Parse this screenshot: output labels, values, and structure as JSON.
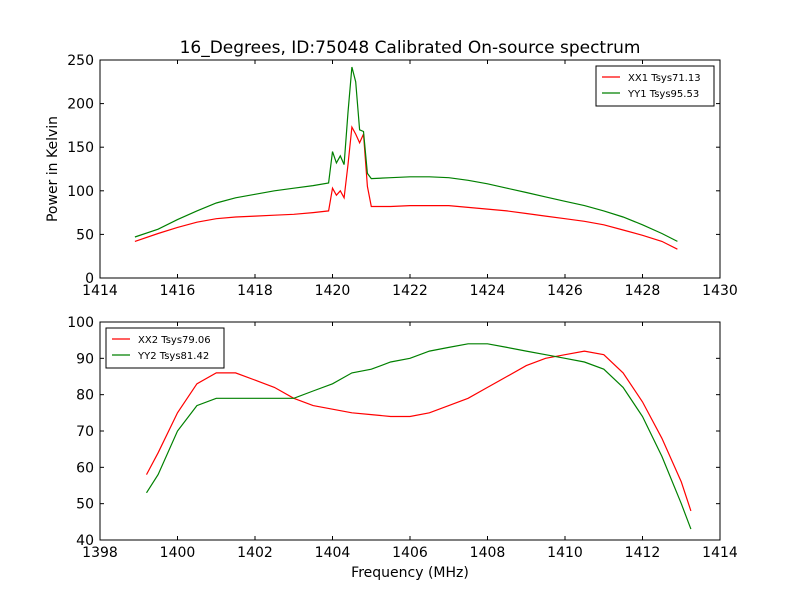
{
  "chart_data": [
    {
      "type": "line",
      "title": "16_Degrees, ID:75048 Calibrated On-source spectrum",
      "xlabel": "",
      "ylabel": "Power in Kelvin",
      "xlim": [
        1414,
        1430
      ],
      "ylim": [
        0,
        250
      ],
      "xticks": [
        "1414",
        "1416",
        "1418",
        "1420",
        "1422",
        "1424",
        "1426",
        "1428",
        "1430"
      ],
      "yticks": [
        "0",
        "50",
        "100",
        "150",
        "200",
        "250"
      ],
      "grid": false,
      "legend_position": "top-right",
      "series": [
        {
          "name": "XX1 Tsys71.13",
          "color": "#ff0000",
          "points": [
            [
              1414.9,
              42
            ],
            [
              1415.5,
              51
            ],
            [
              1416.0,
              58
            ],
            [
              1416.5,
              64
            ],
            [
              1417.0,
              68
            ],
            [
              1417.5,
              70
            ],
            [
              1418.0,
              71
            ],
            [
              1418.5,
              72
            ],
            [
              1419.0,
              73
            ],
            [
              1419.5,
              75
            ],
            [
              1419.9,
              77
            ],
            [
              1420.0,
              103
            ],
            [
              1420.1,
              95
            ],
            [
              1420.2,
              100
            ],
            [
              1420.3,
              92
            ],
            [
              1420.4,
              130
            ],
            [
              1420.5,
              173
            ],
            [
              1420.6,
              165
            ],
            [
              1420.7,
              155
            ],
            [
              1420.8,
              165
            ],
            [
              1420.9,
              105
            ],
            [
              1421.0,
              82
            ],
            [
              1421.5,
              82
            ],
            [
              1422.0,
              83
            ],
            [
              1422.5,
              83
            ],
            [
              1423.0,
              83
            ],
            [
              1423.5,
              81
            ],
            [
              1424.0,
              79
            ],
            [
              1424.5,
              77
            ],
            [
              1425.0,
              74
            ],
            [
              1425.5,
              71
            ],
            [
              1426.0,
              68
            ],
            [
              1426.5,
              65
            ],
            [
              1427.0,
              61
            ],
            [
              1427.5,
              55
            ],
            [
              1428.0,
              49
            ],
            [
              1428.5,
              42
            ],
            [
              1428.9,
              33
            ]
          ]
        },
        {
          "name": "YY1 Tsys95.53",
          "color": "#008000",
          "points": [
            [
              1414.9,
              47
            ],
            [
              1415.5,
              56
            ],
            [
              1416.0,
              67
            ],
            [
              1416.5,
              77
            ],
            [
              1417.0,
              86
            ],
            [
              1417.5,
              92
            ],
            [
              1418.0,
              96
            ],
            [
              1418.5,
              100
            ],
            [
              1419.0,
              103
            ],
            [
              1419.5,
              106
            ],
            [
              1419.9,
              109
            ],
            [
              1420.0,
              145
            ],
            [
              1420.1,
              132
            ],
            [
              1420.2,
              140
            ],
            [
              1420.3,
              130
            ],
            [
              1420.4,
              190
            ],
            [
              1420.5,
              242
            ],
            [
              1420.6,
              225
            ],
            [
              1420.7,
              170
            ],
            [
              1420.8,
              168
            ],
            [
              1420.9,
              120
            ],
            [
              1421.0,
              114
            ],
            [
              1421.5,
              115
            ],
            [
              1422.0,
              116
            ],
            [
              1422.5,
              116
            ],
            [
              1423.0,
              115
            ],
            [
              1423.5,
              112
            ],
            [
              1424.0,
              108
            ],
            [
              1424.5,
              103
            ],
            [
              1425.0,
              98
            ],
            [
              1425.5,
              93
            ],
            [
              1426.0,
              88
            ],
            [
              1426.5,
              83
            ],
            [
              1427.0,
              77
            ],
            [
              1427.5,
              70
            ],
            [
              1428.0,
              61
            ],
            [
              1428.5,
              51
            ],
            [
              1428.9,
              42
            ]
          ]
        }
      ]
    },
    {
      "type": "line",
      "title": "",
      "xlabel": "Frequency (MHz)",
      "ylabel": "",
      "xlim": [
        1398,
        1414
      ],
      "ylim": [
        40,
        100
      ],
      "xticks": [
        "1398",
        "1400",
        "1402",
        "1404",
        "1406",
        "1408",
        "1410",
        "1412",
        "1414"
      ],
      "yticks": [
        "40",
        "50",
        "60",
        "70",
        "80",
        "90",
        "100"
      ],
      "grid": false,
      "legend_position": "top-left",
      "series": [
        {
          "name": "XX2 Tsys79.06",
          "color": "#ff0000",
          "points": [
            [
              1399.2,
              58
            ],
            [
              1399.5,
              64
            ],
            [
              1400.0,
              75
            ],
            [
              1400.5,
              83
            ],
            [
              1401.0,
              86
            ],
            [
              1401.5,
              86
            ],
            [
              1402.0,
              84
            ],
            [
              1402.5,
              82
            ],
            [
              1403.0,
              79
            ],
            [
              1403.5,
              77
            ],
            [
              1404.0,
              76
            ],
            [
              1404.5,
              75
            ],
            [
              1405.0,
              74.5
            ],
            [
              1405.5,
              74
            ],
            [
              1406.0,
              74
            ],
            [
              1406.5,
              75
            ],
            [
              1407.0,
              77
            ],
            [
              1407.5,
              79
            ],
            [
              1408.0,
              82
            ],
            [
              1408.5,
              85
            ],
            [
              1409.0,
              88
            ],
            [
              1409.5,
              90
            ],
            [
              1410.0,
              91
            ],
            [
              1410.5,
              92
            ],
            [
              1411.0,
              91
            ],
            [
              1411.5,
              86
            ],
            [
              1412.0,
              78
            ],
            [
              1412.5,
              68
            ],
            [
              1413.0,
              56
            ],
            [
              1413.25,
              48
            ]
          ]
        },
        {
          "name": "YY2 Tsys81.42",
          "color": "#008000",
          "points": [
            [
              1399.2,
              53
            ],
            [
              1399.5,
              58
            ],
            [
              1400.0,
              70
            ],
            [
              1400.5,
              77
            ],
            [
              1401.0,
              79
            ],
            [
              1401.5,
              79
            ],
            [
              1402.0,
              79
            ],
            [
              1402.5,
              79
            ],
            [
              1403.0,
              79
            ],
            [
              1403.5,
              81
            ],
            [
              1404.0,
              83
            ],
            [
              1404.5,
              86
            ],
            [
              1405.0,
              87
            ],
            [
              1405.5,
              89
            ],
            [
              1406.0,
              90
            ],
            [
              1406.5,
              92
            ],
            [
              1407.0,
              93
            ],
            [
              1407.5,
              94
            ],
            [
              1408.0,
              94
            ],
            [
              1408.5,
              93
            ],
            [
              1409.0,
              92
            ],
            [
              1409.5,
              91
            ],
            [
              1410.0,
              90
            ],
            [
              1410.5,
              89
            ],
            [
              1411.0,
              87
            ],
            [
              1411.5,
              82
            ],
            [
              1412.0,
              74
            ],
            [
              1412.5,
              63
            ],
            [
              1413.0,
              50
            ],
            [
              1413.25,
              43
            ]
          ]
        }
      ]
    }
  ]
}
